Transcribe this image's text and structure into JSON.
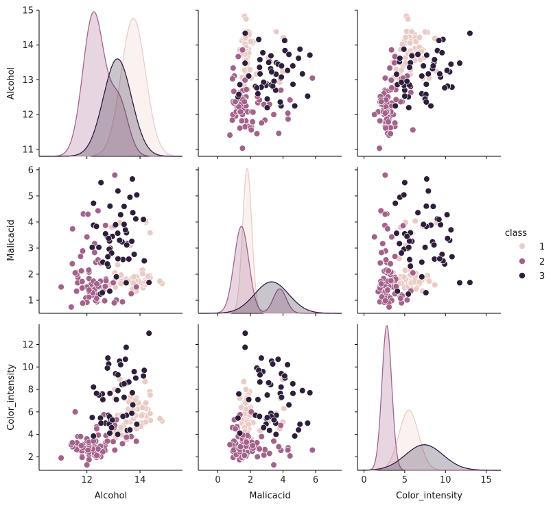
{
  "chart_data": {
    "type": "pairplot",
    "variables": [
      "Alcohol",
      "Malicacid",
      "Color_intensity"
    ],
    "hue": "class",
    "classes": [
      "1",
      "2",
      "3"
    ],
    "colors": {
      "1": "#ebcbc6",
      "2": "#a4628b",
      "3": "#2e1e3c"
    },
    "axes": {
      "Alcohol": {
        "label": "Alcohol",
        "lim": [
          10.2,
          15.6
        ],
        "ticks": [
          12,
          14
        ],
        "ylim": [
          10.8,
          15.0
        ],
        "yticks": [
          11,
          12,
          13,
          14,
          15
        ]
      },
      "Malicacid": {
        "label": "Malicacid",
        "lim": [
          -1.2,
          7.6
        ],
        "ticks": [
          0,
          2,
          4,
          6
        ],
        "ylim": [
          0.5,
          6.1
        ],
        "yticks": [
          1,
          2,
          3,
          4,
          5,
          6
        ]
      },
      "Color_intensity": {
        "label": "Color_intensity",
        "lim": [
          -0.8,
          16.8
        ],
        "ticks": [
          0,
          5,
          10,
          15
        ],
        "ylim": [
          0.8,
          13.8
        ],
        "yticks": [
          2,
          4,
          6,
          8,
          10,
          12
        ]
      }
    },
    "kde": {
      "Alcohol": [
        {
          "class": "1",
          "mean": 13.75,
          "sd": 0.46
        },
        {
          "class": "2",
          "mean": 12.25,
          "sd": 0.4,
          "tail_mean": 13.2,
          "tail_sd": 0.35,
          "tail_weight": 0.25
        },
        {
          "class": "3",
          "mean": 13.15,
          "sd": 0.53
        }
      ],
      "Malicacid": [
        {
          "class": "1",
          "mean": 1.8,
          "sd": 0.28
        },
        {
          "class": "2",
          "mean": 1.45,
          "sd": 0.45,
          "tail_mean": 3.8,
          "tail_sd": 0.4,
          "tail_weight": 0.2
        },
        {
          "class": "3",
          "mean": 3.3,
          "sd": 1.05
        }
      ],
      "Color_intensity": [
        {
          "class": "1",
          "mean": 5.5,
          "sd": 1.2
        },
        {
          "class": "2",
          "mean": 2.8,
          "sd": 0.6
        },
        {
          "class": "3",
          "mean": 7.4,
          "sd": 2.3
        }
      ]
    },
    "points": {
      "1": [
        [
          14.23,
          1.71,
          5.64
        ],
        [
          13.2,
          1.78,
          4.38
        ],
        [
          13.16,
          2.36,
          5.68
        ],
        [
          14.37,
          1.95,
          7.8
        ],
        [
          13.24,
          2.59,
          4.32
        ],
        [
          14.2,
          1.76,
          6.75
        ],
        [
          14.39,
          1.87,
          5.25
        ],
        [
          14.06,
          2.15,
          5.05
        ],
        [
          14.83,
          1.64,
          5.2
        ],
        [
          13.86,
          1.35,
          7.22
        ],
        [
          14.1,
          2.16,
          5.75
        ],
        [
          14.12,
          1.48,
          5.0
        ],
        [
          13.75,
          1.73,
          5.6
        ],
        [
          14.75,
          1.73,
          5.4
        ],
        [
          14.38,
          1.87,
          7.5
        ],
        [
          13.63,
          1.81,
          7.3
        ],
        [
          14.3,
          1.92,
          6.2
        ],
        [
          13.83,
          1.57,
          6.6
        ],
        [
          14.19,
          1.59,
          8.7
        ],
        [
          13.64,
          3.1,
          5.1
        ],
        [
          14.06,
          1.63,
          5.65
        ],
        [
          12.93,
          3.8,
          4.5
        ],
        [
          13.71,
          1.86,
          3.8
        ],
        [
          12.85,
          1.6,
          3.93
        ],
        [
          13.5,
          1.81,
          3.52
        ],
        [
          13.05,
          2.05,
          3.58
        ],
        [
          13.39,
          1.77,
          4.8
        ],
        [
          13.3,
          1.72,
          3.95
        ],
        [
          13.87,
          1.9,
          4.5
        ],
        [
          14.02,
          1.68,
          4.7
        ],
        [
          13.73,
          1.5,
          5.7
        ],
        [
          13.58,
          1.66,
          6.9
        ],
        [
          13.68,
          1.83,
          3.84
        ],
        [
          13.76,
          1.53,
          5.4
        ],
        [
          13.51,
          1.8,
          4.2
        ],
        [
          13.48,
          1.81,
          5.1
        ],
        [
          13.28,
          1.64,
          4.6
        ],
        [
          13.05,
          1.65,
          4.25
        ],
        [
          13.07,
          1.5,
          3.7
        ],
        [
          14.22,
          3.99,
          5.1
        ],
        [
          13.56,
          1.71,
          6.13
        ],
        [
          13.41,
          3.84,
          7.2
        ],
        [
          13.88,
          1.89,
          4.9
        ],
        [
          13.24,
          3.98,
          8.9
        ],
        [
          13.05,
          1.77,
          7.2
        ],
        [
          14.21,
          4.04,
          6.3
        ],
        [
          14.38,
          3.59,
          5.85
        ],
        [
          13.9,
          1.68,
          6.25
        ],
        [
          14.1,
          2.02,
          6.38
        ],
        [
          13.94,
          1.73,
          6.8
        ],
        [
          13.05,
          1.73,
          8.0
        ],
        [
          13.83,
          1.65,
          5.7
        ],
        [
          13.82,
          1.75,
          7.05
        ],
        [
          13.77,
          1.9,
          6.3
        ],
        [
          13.74,
          1.67,
          5.85
        ],
        [
          13.56,
          1.73,
          6.25
        ],
        [
          14.22,
          1.7,
          6.8
        ],
        [
          13.29,
          1.97,
          5.7
        ],
        [
          13.72,
          1.43,
          6.4
        ]
      ],
      "2": [
        [
          12.37,
          0.94,
          1.95
        ],
        [
          12.33,
          1.1,
          3.27
        ],
        [
          12.64,
          1.36,
          5.75
        ],
        [
          13.67,
          1.25,
          3.8
        ],
        [
          12.37,
          1.13,
          4.45
        ],
        [
          12.17,
          1.45,
          2.95
        ],
        [
          12.37,
          1.21,
          4.6
        ],
        [
          13.11,
          1.01,
          5.3
        ],
        [
          12.37,
          1.17,
          4.68
        ],
        [
          13.34,
          0.94,
          3.17
        ],
        [
          12.21,
          1.19,
          2.85
        ],
        [
          12.29,
          1.61,
          3.05
        ],
        [
          13.86,
          1.51,
          3.38
        ],
        [
          13.49,
          1.66,
          3.74
        ],
        [
          12.99,
          1.67,
          3.35
        ],
        [
          11.96,
          1.09,
          3.21
        ],
        [
          11.66,
          1.88,
          3.8
        ],
        [
          13.03,
          0.9,
          4.6
        ],
        [
          11.84,
          2.89,
          2.65
        ],
        [
          12.33,
          0.99,
          3.4
        ],
        [
          12.7,
          3.87,
          2.57
        ],
        [
          12.0,
          0.92,
          2.5
        ],
        [
          12.72,
          1.81,
          3.9
        ],
        [
          12.08,
          1.13,
          2.2
        ],
        [
          13.05,
          3.86,
          4.8
        ],
        [
          11.84,
          0.89,
          3.05
        ],
        [
          12.67,
          0.98,
          2.62
        ],
        [
          12.16,
          1.61,
          2.45
        ],
        [
          11.65,
          1.67,
          2.6
        ],
        [
          11.64,
          2.06,
          2.8
        ],
        [
          12.08,
          1.33,
          1.74
        ],
        [
          12.08,
          1.83,
          2.4
        ],
        [
          12.0,
          1.51,
          3.6
        ],
        [
          12.69,
          1.53,
          3.05
        ],
        [
          12.29,
          2.83,
          2.15
        ],
        [
          11.62,
          1.99,
          3.25
        ],
        [
          12.47,
          1.52,
          2.6
        ],
        [
          11.81,
          2.12,
          2.5
        ],
        [
          12.29,
          1.41,
          2.9
        ],
        [
          12.37,
          1.07,
          4.5
        ],
        [
          12.29,
          3.17,
          2.3
        ],
        [
          12.08,
          2.08,
          3.3
        ],
        [
          12.6,
          1.34,
          2.45
        ],
        [
          12.34,
          2.45,
          2.8
        ],
        [
          11.82,
          1.72,
          2.06
        ],
        [
          12.51,
          1.73,
          2.94
        ],
        [
          12.42,
          2.55,
          2.7
        ],
        [
          12.25,
          1.73,
          3.4
        ],
        [
          12.72,
          1.75,
          3.3
        ],
        [
          12.22,
          1.29,
          2.7
        ],
        [
          11.61,
          1.35,
          2.65
        ],
        [
          11.46,
          3.74,
          2.9
        ],
        [
          12.52,
          2.43,
          2.0
        ],
        [
          11.76,
          2.68,
          3.8
        ],
        [
          11.41,
          0.74,
          3.08
        ],
        [
          12.08,
          1.39,
          2.9
        ],
        [
          11.03,
          1.51,
          1.9
        ],
        [
          11.82,
          1.47,
          1.95
        ],
        [
          12.42,
          1.61,
          2.06
        ],
        [
          12.77,
          3.43,
          3.4
        ],
        [
          12.0,
          3.43,
          1.28
        ],
        [
          11.45,
          2.4,
          3.25
        ],
        [
          11.56,
          2.05,
          6.0
        ],
        [
          12.42,
          4.43,
          2.08
        ],
        [
          13.05,
          5.8,
          2.6
        ],
        [
          11.87,
          4.31,
          2.8
        ],
        [
          12.07,
          2.16,
          2.76
        ],
        [
          12.43,
          1.53,
          3.94
        ],
        [
          11.79,
          2.13,
          3.0
        ],
        [
          12.37,
          1.63,
          2.12
        ],
        [
          12.04,
          4.3,
          2.6
        ]
      ],
      "3": [
        [
          12.86,
          1.35,
          4.1
        ],
        [
          12.88,
          2.99,
          5.4
        ],
        [
          12.81,
          2.31,
          5.7
        ],
        [
          12.7,
          3.55,
          5.0
        ],
        [
          12.51,
          1.24,
          5.45
        ],
        [
          12.6,
          2.46,
          7.1
        ],
        [
          12.25,
          4.72,
          3.85
        ],
        [
          12.53,
          5.51,
          5.0
        ],
        [
          13.49,
          3.59,
          5.7
        ],
        [
          12.84,
          2.96,
          4.92
        ],
        [
          12.93,
          2.81,
          4.6
        ],
        [
          13.36,
          2.56,
          5.6
        ],
        [
          13.52,
          3.17,
          4.35
        ],
        [
          13.62,
          4.95,
          4.4
        ],
        [
          12.25,
          3.88,
          8.21
        ],
        [
          13.16,
          3.57,
          4.0
        ],
        [
          13.88,
          5.04,
          4.9
        ],
        [
          12.87,
          4.61,
          7.65
        ],
        [
          13.32,
          3.24,
          8.42
        ],
        [
          13.08,
          3.9,
          9.4
        ],
        [
          13.5,
          3.12,
          8.6
        ],
        [
          12.79,
          2.67,
          10.8
        ],
        [
          13.11,
          1.9,
          7.1
        ],
        [
          13.23,
          3.3,
          10.52
        ],
        [
          12.58,
          1.29,
          7.6
        ],
        [
          13.17,
          5.19,
          7.9
        ],
        [
          13.84,
          4.12,
          9.01
        ],
        [
          12.45,
          3.03,
          7.5
        ],
        [
          14.34,
          1.68,
          13.0
        ],
        [
          13.48,
          1.67,
          11.75
        ],
        [
          12.36,
          3.83,
          7.65
        ],
        [
          13.69,
          3.26,
          5.88
        ],
        [
          12.85,
          3.27,
          5.58
        ],
        [
          12.96,
          3.45,
          5.28
        ],
        [
          13.78,
          2.76,
          9.58
        ],
        [
          13.73,
          4.36,
          6.62
        ],
        [
          13.45,
          3.7,
          10.68
        ],
        [
          12.82,
          3.37,
          10.26
        ],
        [
          13.58,
          2.58,
          8.66
        ],
        [
          13.4,
          4.6,
          8.5
        ],
        [
          12.2,
          3.03,
          5.5
        ],
        [
          12.77,
          2.39,
          9.9
        ],
        [
          14.16,
          2.51,
          9.7
        ],
        [
          13.71,
          5.65,
          7.7
        ],
        [
          13.4,
          3.91,
          7.3
        ],
        [
          13.27,
          4.28,
          10.2
        ],
        [
          13.17,
          2.59,
          9.3
        ],
        [
          14.13,
          4.1,
          9.2
        ]
      ]
    },
    "legend": {
      "title": "class",
      "entries": [
        "1",
        "2",
        "3"
      ],
      "placement": "right"
    }
  }
}
